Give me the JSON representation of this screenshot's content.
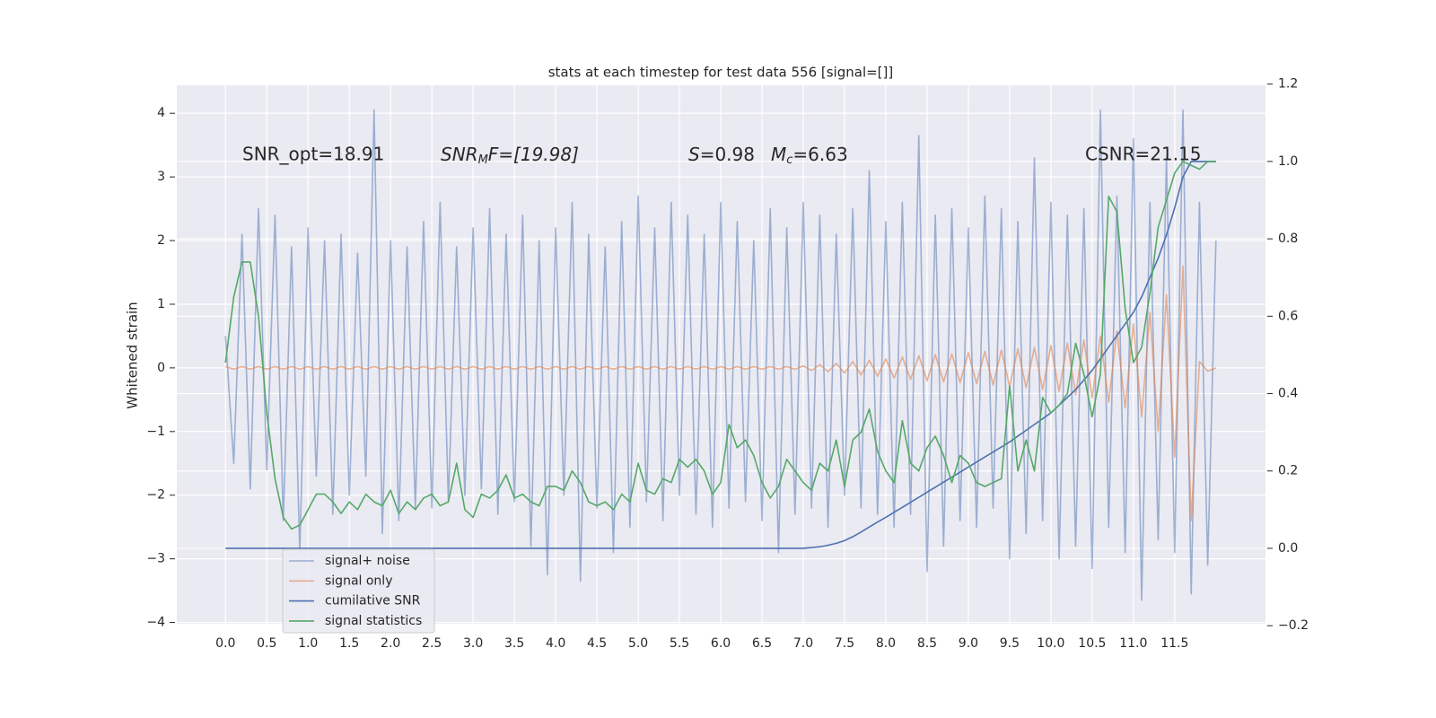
{
  "chart_data": {
    "type": "line",
    "title": "stats at each timestep for test data 556 [signal=[]]",
    "y_label": "Whitened strain",
    "annotations": {
      "snr_opt": "SNR_opt=18.91",
      "snr_mf": [
        "SNR",
        "M",
        "F=[19.98]"
      ],
      "s": [
        "S",
        "=0.98"
      ],
      "mc": [
        "M",
        "c",
        "=6.63"
      ],
      "csnr": "CSNR=21.15"
    },
    "xlim": [
      -0.59,
      12.6
    ],
    "ylim": [
      -4.02,
      4.44
    ],
    "y2lim": [
      -0.195,
      1.197
    ],
    "xticks": [
      {
        "value": 0,
        "label": "0.0"
      },
      0.5,
      {
        "value": 1,
        "label": "1.0"
      },
      1.5,
      {
        "value": 2,
        "label": "2.0"
      },
      2.5,
      {
        "value": 3,
        "label": "3.0"
      },
      3.5,
      {
        "value": 4,
        "label": "4.0"
      },
      4.5,
      {
        "value": 5,
        "label": "5.0"
      },
      5.5,
      {
        "value": 6,
        "label": "6.0"
      },
      6.5,
      {
        "value": 7,
        "label": "7.0"
      },
      7.5,
      {
        "value": 8,
        "label": "8.0"
      },
      8.5,
      {
        "value": 9,
        "label": "9.0"
      },
      9.5,
      {
        "value": 10,
        "label": "10.0"
      },
      10.5,
      {
        "value": 11,
        "label": "11.0"
      },
      11.5
    ],
    "yticks": [
      {
        "value": -4,
        "label": "−4"
      },
      {
        "value": -3,
        "label": "−3"
      },
      {
        "value": -2,
        "label": "−2"
      },
      {
        "value": -1,
        "label": "−1"
      },
      0,
      1,
      2,
      3,
      4
    ],
    "y2ticks": [
      {
        "value": -0.2,
        "label": "−0.2"
      },
      {
        "value": 0,
        "label": "0.0"
      },
      0.2,
      0.4,
      0.6,
      0.8,
      {
        "value": 1,
        "label": "1.0"
      },
      1.2
    ],
    "grid": true,
    "legend": "lower left",
    "x": [
      0,
      0.1,
      0.2,
      0.3,
      0.4,
      0.5,
      0.6,
      0.7,
      0.8,
      0.9,
      1,
      1.1,
      1.2,
      1.3,
      1.4,
      1.5,
      1.6,
      1.7,
      1.8,
      1.9,
      2,
      2.1,
      2.2,
      2.3,
      2.4,
      2.5,
      2.6,
      2.7,
      2.8,
      2.9,
      3,
      3.1,
      3.2,
      3.3,
      3.4,
      3.5,
      3.6,
      3.7,
      3.8,
      3.9,
      4,
      4.1,
      4.2,
      4.3,
      4.4,
      4.5,
      4.6,
      4.7,
      4.8,
      4.9,
      5,
      5.1,
      5.2,
      5.3,
      5.4,
      5.5,
      5.6,
      5.7,
      5.8,
      5.9,
      6,
      6.1,
      6.2,
      6.3,
      6.4,
      6.5,
      6.6,
      6.7,
      6.8,
      6.9,
      7,
      7.1,
      7.2,
      7.3,
      7.4,
      7.5,
      7.6,
      7.7,
      7.8,
      7.9,
      8,
      8.1,
      8.2,
      8.3,
      8.4,
      8.5,
      8.6,
      8.7,
      8.8,
      8.9,
      9,
      9.1,
      9.2,
      9.3,
      9.4,
      9.5,
      9.6,
      9.7,
      9.8,
      9.9,
      10,
      10.1,
      10.2,
      10.3,
      10.4,
      10.5,
      10.6,
      10.7,
      10.8,
      10.9,
      11,
      11.1,
      11.2,
      11.3,
      11.4,
      11.5,
      11.6,
      11.7,
      11.8,
      11.9,
      12
    ],
    "series": [
      {
        "name": "signal+ noise",
        "color": "#4c72b0",
        "opacity": 0.5,
        "values": [
          0.5,
          -1.5,
          2.1,
          -1.9,
          2.5,
          -1.6,
          2.4,
          -2.4,
          1.9,
          -2.9,
          2.2,
          -1.7,
          2.0,
          -2.3,
          2.1,
          -2.0,
          1.8,
          -1.7,
          4.05,
          -2.6,
          2.0,
          -2.4,
          1.9,
          -2.2,
          2.3,
          -2.2,
          2.6,
          -2.1,
          1.9,
          -2.0,
          2.2,
          -1.9,
          2.5,
          -2.3,
          2.1,
          -2.1,
          2.4,
          -2.8,
          2.0,
          -3.25,
          2.2,
          -2.0,
          2.6,
          -3.35,
          2.1,
          -2.2,
          1.9,
          -2.9,
          2.3,
          -2.5,
          2.7,
          -2.1,
          2.2,
          -2.4,
          2.6,
          -2.0,
          2.4,
          -2.3,
          2.1,
          -2.5,
          2.6,
          -2.2,
          2.3,
          -2.1,
          2.0,
          -2.4,
          2.5,
          -2.9,
          2.2,
          -2.3,
          2.6,
          -2.2,
          2.4,
          -2.5,
          2.1,
          -2.0,
          2.5,
          -2.2,
          3.1,
          -2.3,
          2.3,
          -2.5,
          2.6,
          -2.3,
          3.65,
          -3.2,
          2.4,
          -2.8,
          2.5,
          -2.4,
          2.2,
          -2.5,
          2.7,
          -2.2,
          2.5,
          -3.0,
          2.3,
          -2.6,
          3.3,
          -2.4,
          2.6,
          -3.0,
          2.4,
          -2.8,
          2.5,
          -3.15,
          4.05,
          -2.5,
          2.7,
          -2.9,
          3.6,
          -3.65,
          2.6,
          -2.7,
          3.3,
          -2.9,
          4.05,
          -3.55,
          2.6,
          -3.1,
          2.0
        ]
      },
      {
        "name": "signal only",
        "color": "#dd8452",
        "opacity": 0.6,
        "values": [
          0.02,
          -0.02,
          0.02,
          -0.02,
          0.02,
          -0.02,
          0.02,
          -0.02,
          0.02,
          -0.02,
          0.02,
          -0.02,
          0.02,
          -0.02,
          0.02,
          -0.02,
          0.02,
          -0.02,
          0.02,
          -0.02,
          0.02,
          -0.02,
          0.02,
          -0.02,
          0.02,
          -0.02,
          0.02,
          -0.02,
          0.02,
          -0.02,
          0.02,
          -0.02,
          0.02,
          -0.02,
          0.02,
          -0.02,
          0.02,
          -0.02,
          0.02,
          -0.02,
          0.02,
          -0.02,
          0.02,
          -0.02,
          0.02,
          -0.02,
          0.02,
          -0.02,
          0.02,
          -0.02,
          0.02,
          -0.02,
          0.02,
          -0.02,
          0.02,
          -0.02,
          0.02,
          -0.02,
          0.02,
          -0.02,
          0.02,
          -0.02,
          0.02,
          -0.02,
          0.02,
          -0.02,
          0.02,
          -0.02,
          0.02,
          -0.02,
          0.03,
          -0.04,
          0.05,
          -0.06,
          0.07,
          -0.08,
          0.1,
          -0.11,
          0.12,
          -0.13,
          0.14,
          -0.16,
          0.17,
          -0.18,
          0.19,
          -0.2,
          0.21,
          -0.22,
          0.22,
          -0.23,
          0.24,
          -0.25,
          0.26,
          -0.27,
          0.28,
          -0.29,
          0.3,
          -0.31,
          0.32,
          -0.34,
          0.35,
          -0.37,
          0.39,
          -0.42,
          0.44,
          -0.47,
          0.5,
          -0.54,
          0.58,
          -0.63,
          0.69,
          -0.77,
          0.87,
          -1.0,
          1.15,
          -1.4,
          1.6,
          -2.4,
          0.1,
          -0.05,
          0.0
        ]
      },
      {
        "name": "cumilative SNR",
        "color": "#4c72b0",
        "opacity": 1,
        "axis": "y2",
        "values": [
          0,
          0,
          0,
          0,
          0,
          0,
          0,
          0,
          0,
          0,
          0,
          0,
          0,
          0,
          0,
          0,
          0,
          0,
          0,
          0,
          0,
          0,
          0,
          0,
          0,
          0,
          0,
          0,
          0,
          0,
          0,
          0,
          0,
          0,
          0,
          0,
          0,
          0,
          0,
          0,
          0,
          0,
          0,
          0,
          0,
          0,
          0,
          0,
          0,
          0,
          0,
          0,
          0,
          0,
          0,
          0,
          0,
          0,
          0,
          0,
          0,
          0,
          0,
          0,
          0,
          0,
          0,
          0,
          0,
          0,
          0,
          0.002,
          0.004,
          0.008,
          0.013,
          0.02,
          0.03,
          0.042,
          0.055,
          0.068,
          0.08,
          0.093,
          0.106,
          0.119,
          0.132,
          0.145,
          0.158,
          0.171,
          0.184,
          0.197,
          0.21,
          0.223,
          0.236,
          0.249,
          0.262,
          0.275,
          0.29,
          0.305,
          0.32,
          0.335,
          0.35,
          0.37,
          0.39,
          0.41,
          0.435,
          0.46,
          0.49,
          0.52,
          0.55,
          0.58,
          0.61,
          0.65,
          0.7,
          0.75,
          0.81,
          0.88,
          0.96,
          1.0,
          1.0,
          1.0,
          1.0
        ]
      },
      {
        "name": "signal statistics",
        "color": "#55a868",
        "opacity": 1,
        "axis": "y2",
        "values": [
          0.48,
          0.65,
          0.74,
          0.74,
          0.6,
          0.35,
          0.18,
          0.08,
          0.05,
          0.06,
          0.1,
          0.14,
          0.14,
          0.12,
          0.09,
          0.12,
          0.1,
          0.14,
          0.12,
          0.11,
          0.15,
          0.09,
          0.12,
          0.1,
          0.13,
          0.14,
          0.11,
          0.12,
          0.22,
          0.1,
          0.08,
          0.14,
          0.13,
          0.15,
          0.19,
          0.13,
          0.14,
          0.12,
          0.11,
          0.16,
          0.16,
          0.15,
          0.2,
          0.17,
          0.12,
          0.11,
          0.12,
          0.1,
          0.14,
          0.12,
          0.22,
          0.15,
          0.14,
          0.18,
          0.17,
          0.23,
          0.21,
          0.23,
          0.2,
          0.14,
          0.17,
          0.32,
          0.26,
          0.28,
          0.24,
          0.17,
          0.13,
          0.16,
          0.23,
          0.2,
          0.17,
          0.15,
          0.22,
          0.2,
          0.28,
          0.16,
          0.28,
          0.3,
          0.36,
          0.25,
          0.2,
          0.17,
          0.33,
          0.22,
          0.2,
          0.26,
          0.29,
          0.24,
          0.17,
          0.24,
          0.22,
          0.17,
          0.16,
          0.17,
          0.18,
          0.42,
          0.2,
          0.28,
          0.2,
          0.39,
          0.35,
          0.37,
          0.4,
          0.53,
          0.45,
          0.34,
          0.45,
          0.91,
          0.87,
          0.62,
          0.48,
          0.52,
          0.66,
          0.83,
          0.9,
          0.97,
          1.0,
          0.99,
          0.98,
          1.0,
          1.0
        ]
      }
    ]
  }
}
